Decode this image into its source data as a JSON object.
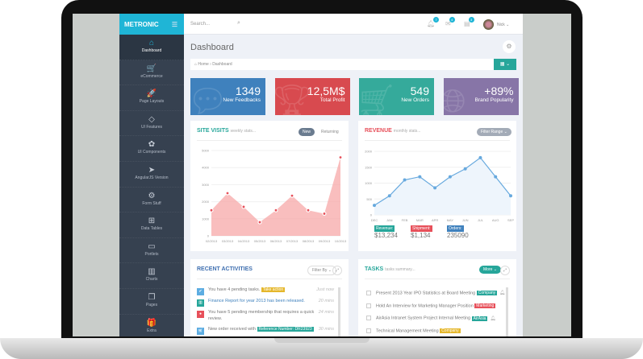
{
  "brand": "METRONIC",
  "search": {
    "placeholder": "Search..."
  },
  "header": {
    "notifications": "7",
    "inbox": "4",
    "tasks": "3",
    "user": "Nick"
  },
  "sidebar": {
    "items": [
      {
        "label": "Dashboard",
        "icon": "home-icon",
        "glyph": "⌂"
      },
      {
        "label": "eCommerce",
        "icon": "cart-icon",
        "glyph": "🛒"
      },
      {
        "label": "Page Layouts",
        "icon": "rocket-icon",
        "glyph": "🚀"
      },
      {
        "label": "UI Features",
        "icon": "diamond-icon",
        "glyph": "◇"
      },
      {
        "label": "UI Components",
        "icon": "puzzle-icon",
        "glyph": "✿"
      },
      {
        "label": "AngularJS Version",
        "icon": "paper-plane-icon",
        "glyph": "➤"
      },
      {
        "label": "Form Stuff",
        "icon": "settings-icon",
        "glyph": "⚙"
      },
      {
        "label": "Data Tables",
        "icon": "briefcase-icon",
        "glyph": "⊞"
      },
      {
        "label": "Portlets",
        "icon": "wallet-icon",
        "glyph": "▭"
      },
      {
        "label": "Charts",
        "icon": "bar-chart-icon",
        "glyph": "▥"
      },
      {
        "label": "Pages",
        "icon": "docs-icon",
        "glyph": "❐"
      },
      {
        "label": "Extra",
        "icon": "present-icon",
        "glyph": "🎁"
      }
    ]
  },
  "page": {
    "title": "Dashboard",
    "breadcrumb": [
      "Home",
      "Dashboard"
    ]
  },
  "stats": [
    {
      "value": "1349",
      "label": "New Feedbacks",
      "color": "#3f81bd",
      "icon": "comments-icon"
    },
    {
      "value": "12,5M$",
      "label": "Total Profit",
      "color": "#d84a4f",
      "icon": "trophy-icon"
    },
    {
      "value": "549",
      "label": "New Orders",
      "color": "#35aa9b",
      "icon": "cart-icon"
    },
    {
      "value": "+89%",
      "label": "Brand Popularity",
      "color": "#8775a7",
      "icon": "globe-icon"
    }
  ],
  "site_visits": {
    "title": "SITE VISITS",
    "subtitle": "weekly stats...",
    "tabs": [
      "New",
      "Returning"
    ]
  },
  "revenue": {
    "title": "REVENUE",
    "subtitle": "monthly stats...",
    "filter": "Filter Range",
    "kpis": [
      {
        "label": "Revenue:",
        "value": "$13,234",
        "color": "#26a69a"
      },
      {
        "label": "Shipment:",
        "value": "$1,134",
        "color": "#e7505a"
      },
      {
        "label": "Orders:",
        "value": "235090",
        "color": "#3f81bd"
      }
    ]
  },
  "chart_data": [
    {
      "type": "area",
      "categories": [
        "02/2013",
        "03/2013",
        "04/2013",
        "05/2013",
        "06/2013",
        "07/2013",
        "08/2013",
        "09/2013",
        "10/2013"
      ],
      "values": [
        1500,
        2500,
        1700,
        800,
        1500,
        2350,
        1500,
        1300,
        4600
      ],
      "ylim": [
        0,
        5000
      ],
      "yticks": [
        0,
        1000,
        2000,
        3000,
        4000,
        5000
      ],
      "color": "#f7a3a3",
      "grid": true
    },
    {
      "type": "line",
      "categories": [
        "DEC",
        "JAN",
        "FEB",
        "MAR",
        "APR",
        "MAY",
        "JUN",
        "JUL",
        "AUG",
        "SEP"
      ],
      "values": [
        300,
        600,
        1100,
        1200,
        850,
        1200,
        1450,
        1800,
        1200,
        600
      ],
      "ylim": [
        0,
        2000
      ],
      "yticks": [
        0,
        500,
        1000,
        1500,
        2000
      ],
      "color": "#67a9de",
      "grid": true
    }
  ],
  "activities": {
    "title": "RECENT ACTIVITIES",
    "filter": "Filter By",
    "items": [
      {
        "text": "You have 4 pending tasks.",
        "tag": "Take action",
        "tag_color": "#e5b72c",
        "time": "Just now",
        "color": "#5dade2",
        "icon": "check-icon"
      },
      {
        "text": "Finance Report for year 2013 has been released.",
        "time": "20 mins",
        "color": "#26a69a",
        "icon": "bar-chart-icon"
      },
      {
        "text": "You have 5 pending membership that requires a quick review.",
        "time": "24 mins",
        "color": "#e7505a",
        "icon": "user-icon"
      },
      {
        "text": "New order received with",
        "tag": "Reference Number: DR23923",
        "tag_color": "#26a69a",
        "time": "30 mins",
        "color": "#5dade2",
        "icon": "cart-icon"
      }
    ]
  },
  "tasks": {
    "title": "TASKS",
    "subtitle": "tasks summary...",
    "more": "More",
    "items": [
      {
        "text": "Present 2013 Year IPO Statistics at Board Meeting",
        "tag": "Company",
        "tag_color": "#26a69a",
        "bell": true
      },
      {
        "text": "Hold An Interview for Marketing Manager Position",
        "tag": "Marketing",
        "tag_color": "#e7505a"
      },
      {
        "text": "AirAsia Intranet System Project Internal Meeting",
        "tag": "AirAsia",
        "tag_color": "#26a69a",
        "bell": true
      },
      {
        "text": "Technical Management Meeting",
        "tag": "Company",
        "tag_color": "#e5b72c"
      }
    ]
  }
}
